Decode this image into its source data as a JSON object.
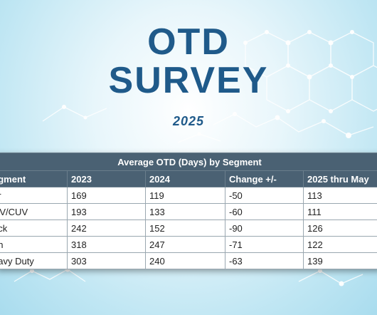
{
  "header": {
    "title_line1": "OTD",
    "title_line2": "SURVEY",
    "year": "2025"
  },
  "table": {
    "caption": "Average OTD (Days) by Segment",
    "columns": [
      "egment",
      "2023",
      "2024",
      "Change +/-",
      "2025 thru May"
    ],
    "rows": [
      [
        "ar",
        "169",
        "119",
        "-50",
        "113"
      ],
      [
        "UV/CUV",
        "193",
        "133",
        "-60",
        "111"
      ],
      [
        "uck",
        "242",
        "152",
        "-90",
        "126"
      ],
      [
        "an",
        "318",
        "247",
        "-71",
        "122"
      ],
      [
        "eavy Duty",
        "303",
        "240",
        "-63",
        "139"
      ]
    ]
  },
  "colors": {
    "title": "#1f5a8a",
    "table_header": "#4a6173",
    "background": "#bfe6f3"
  }
}
